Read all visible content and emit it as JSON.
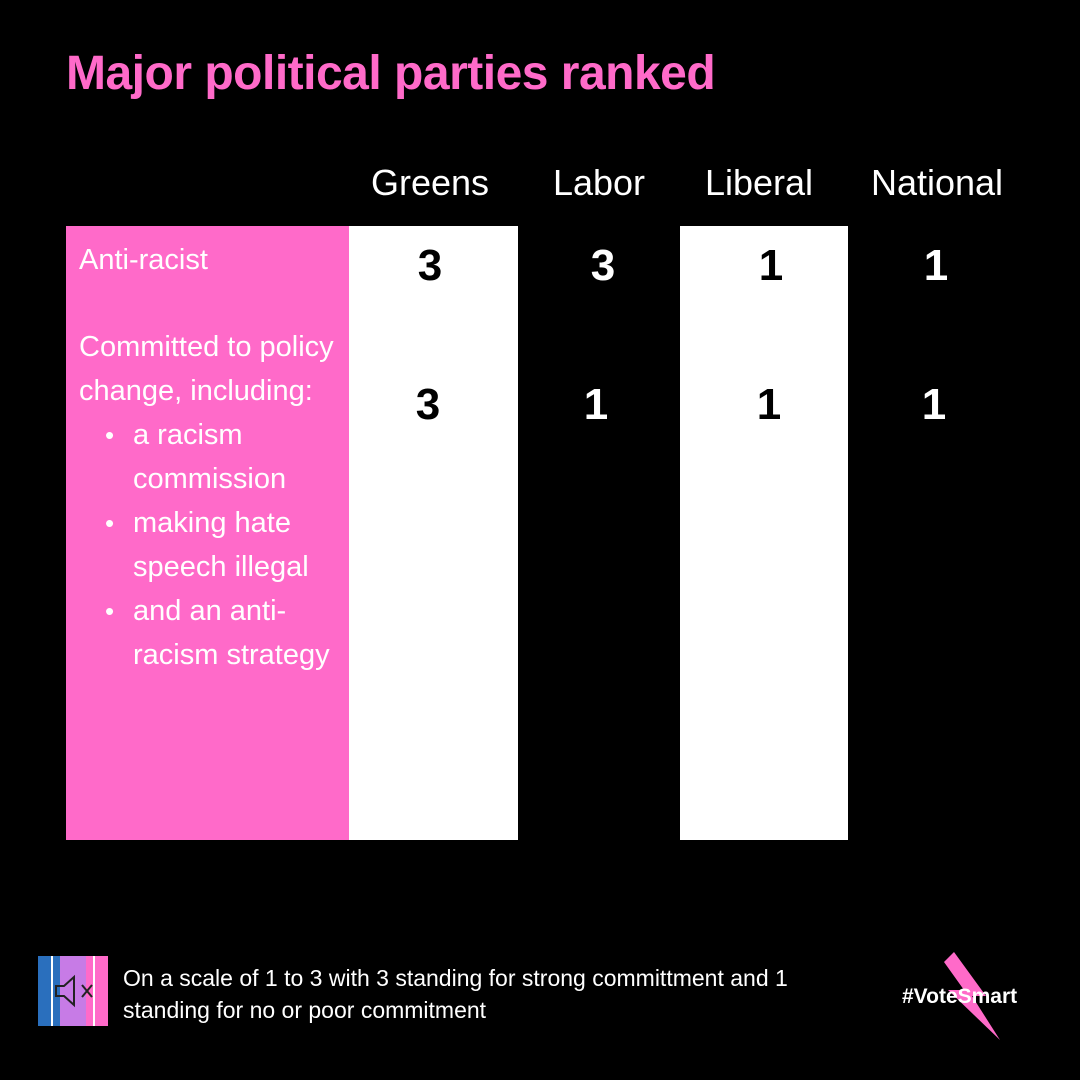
{
  "title": "Major political parties ranked",
  "parties": [
    "Greens",
    "Labor",
    "Liberal",
    "National"
  ],
  "criteria": [
    {
      "label": "Anti-racist",
      "scores": [
        "3",
        "3",
        "1",
        "1"
      ]
    },
    {
      "label": "Committed to policy change, including:",
      "bullets": [
        "a racism commission",
        "making hate speech illegal",
        "and an anti-racism strategy"
      ],
      "scores": [
        "3",
        "1",
        "1",
        "1"
      ]
    }
  ],
  "footnote": "On a scale of 1 to 3 with 3 standing for strong committment and 1 standing for no or poor commitment",
  "brand": "#VoteSmart",
  "icons": {
    "footer": "muted-speaker-icon",
    "brand": "lightning-bolt-icon"
  },
  "colors": {
    "background": "#000000",
    "accent": "#ff6ac9",
    "highlight_column": "#ffffff",
    "text": "#ffffff",
    "icon_blue": "#2a6fbd",
    "icon_purple": "#c77be6"
  }
}
